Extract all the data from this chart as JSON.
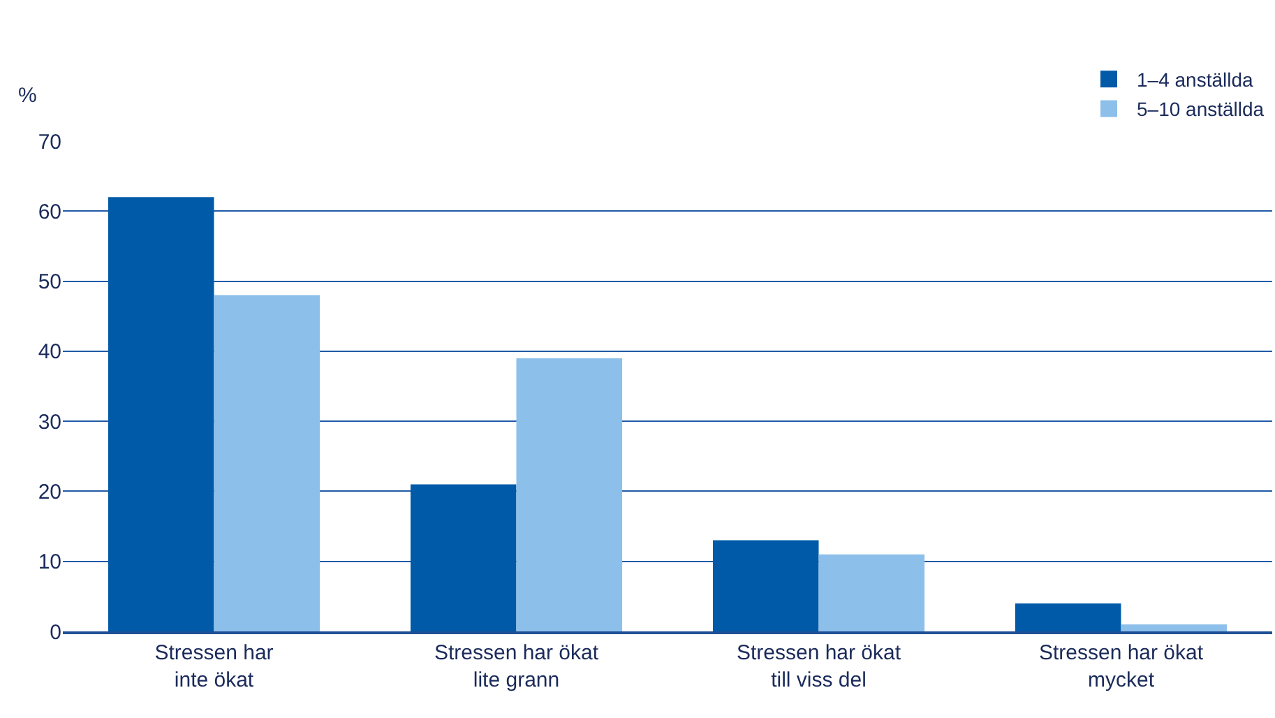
{
  "chart_data": {
    "type": "bar",
    "ylabel": "%",
    "categories": [
      "Stressen har\ninte ökat",
      "Stressen har ökat\nlite grann",
      "Stressen har ökat\ntill viss del",
      "Stressen har ökat\nmycket"
    ],
    "series": [
      {
        "name": "1–4 anställda",
        "color": "#005aa8",
        "values": [
          62,
          21,
          13,
          4
        ]
      },
      {
        "name": "5–10 anställda",
        "color": "#8cc0eb",
        "values": [
          48,
          39,
          11,
          1
        ]
      }
    ],
    "ylim": [
      0,
      70
    ],
    "yticks": [
      0,
      10,
      20,
      30,
      40,
      50,
      60,
      70
    ],
    "grid": "y",
    "legend": "top right"
  }
}
